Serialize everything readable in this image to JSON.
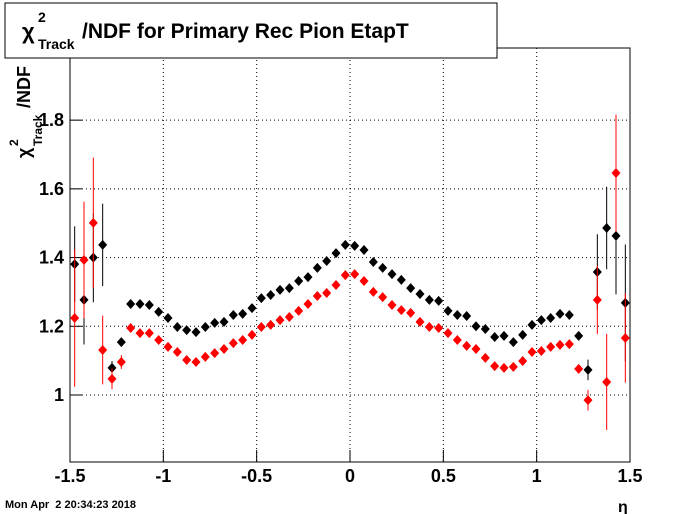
{
  "chart_data": {
    "type": "scatter",
    "title": {
      "symbol": "χ",
      "sup": "2",
      "sub": "Track",
      "text": "/NDF for Primary Rec Pion EtapT"
    },
    "y_label": {
      "symbol": "χ",
      "sup": "2",
      "sub": "Track",
      "text": "/NDF"
    },
    "x_label": "η",
    "footer": "Mon Apr  2 20:34:23 2018",
    "xlim": [
      -1.5,
      1.5
    ],
    "ylim": [
      0.805,
      2.01
    ],
    "xticks": [
      -1.5,
      -1,
      -0.5,
      0,
      0.5,
      1,
      1.5
    ],
    "yticks": [
      1,
      1.2,
      1.4,
      1.6,
      1.8
    ],
    "grid": true,
    "x": [
      -1.475,
      -1.425,
      -1.375,
      -1.325,
      -1.275,
      -1.225,
      -1.175,
      -1.125,
      -1.075,
      -1.025,
      -0.975,
      -0.925,
      -0.875,
      -0.825,
      -0.775,
      -0.725,
      -0.675,
      -0.625,
      -0.575,
      -0.525,
      -0.475,
      -0.425,
      -0.375,
      -0.325,
      -0.275,
      -0.225,
      -0.175,
      -0.125,
      -0.075,
      -0.025,
      0.025,
      0.075,
      0.125,
      0.175,
      0.225,
      0.275,
      0.325,
      0.375,
      0.425,
      0.475,
      0.525,
      0.575,
      0.625,
      0.675,
      0.725,
      0.775,
      0.825,
      0.875,
      0.925,
      0.975,
      1.025,
      1.075,
      1.125,
      1.175,
      1.225,
      1.275,
      1.325,
      1.375,
      1.425,
      1.475
    ],
    "series": [
      {
        "color": "#000000",
        "values": [
          1.381,
          1.277,
          1.4,
          1.437,
          1.079,
          1.154,
          1.265,
          1.265,
          1.262,
          1.242,
          1.224,
          1.198,
          1.189,
          1.183,
          1.198,
          1.21,
          1.213,
          1.233,
          1.236,
          1.253,
          1.282,
          1.291,
          1.306,
          1.311,
          1.332,
          1.343,
          1.37,
          1.39,
          1.413,
          1.437,
          1.434,
          1.422,
          1.387,
          1.37,
          1.352,
          1.335,
          1.311,
          1.294,
          1.277,
          1.274,
          1.245,
          1.233,
          1.23,
          1.2,
          1.192,
          1.169,
          1.172,
          1.154,
          1.175,
          1.204,
          1.218,
          1.224,
          1.236,
          1.233,
          1.172,
          1.073,
          1.358,
          1.486,
          1.463,
          1.268
        ],
        "errors": [
          0.11,
          0.13,
          0.13,
          0.12,
          0.02,
          0.01,
          0.01,
          0.01,
          0.01,
          0.01,
          0.01,
          0,
          0,
          0,
          0,
          0,
          0,
          0,
          0,
          0,
          0,
          0,
          0,
          0,
          0,
          0,
          0,
          0,
          0,
          0,
          0,
          0,
          0,
          0,
          0,
          0,
          0,
          0,
          0,
          0,
          0,
          0,
          0,
          0,
          0,
          0,
          0,
          0,
          0,
          0,
          0,
          0,
          0.01,
          0.01,
          0.01,
          0.03,
          0.11,
          0.12,
          0.17,
          0.17
        ]
      },
      {
        "color": "#ff0000",
        "values": [
          1.224,
          1.393,
          1.501,
          1.131,
          1.047,
          1.096,
          1.195,
          1.18,
          1.18,
          1.16,
          1.14,
          1.125,
          1.102,
          1.096,
          1.111,
          1.122,
          1.134,
          1.151,
          1.16,
          1.175,
          1.198,
          1.204,
          1.218,
          1.227,
          1.245,
          1.265,
          1.288,
          1.297,
          1.32,
          1.349,
          1.352,
          1.332,
          1.3,
          1.285,
          1.262,
          1.247,
          1.239,
          1.213,
          1.198,
          1.195,
          1.18,
          1.16,
          1.143,
          1.134,
          1.108,
          1.084,
          1.079,
          1.082,
          1.099,
          1.125,
          1.128,
          1.14,
          1.146,
          1.148,
          1.076,
          0.985,
          1.277,
          1.038,
          1.646,
          1.166
        ],
        "errors": [
          0.2,
          0.17,
          0.19,
          0.1,
          0.03,
          0.02,
          0.01,
          0.01,
          0.01,
          0.01,
          0.01,
          0,
          0,
          0,
          0,
          0,
          0,
          0,
          0,
          0,
          0,
          0,
          0,
          0,
          0,
          0,
          0,
          0,
          0,
          0,
          0,
          0,
          0,
          0,
          0,
          0,
          0,
          0,
          0,
          0,
          0,
          0,
          0,
          0,
          0,
          0,
          0,
          0,
          0,
          0,
          0,
          0,
          0.01,
          0.01,
          0.01,
          0.03,
          0.1,
          0.14,
          0.17,
          0.13
        ]
      }
    ]
  }
}
